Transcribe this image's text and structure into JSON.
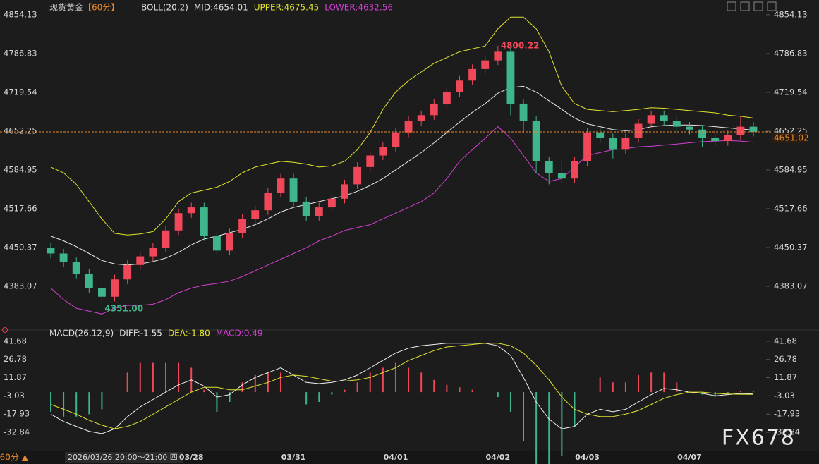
{
  "chart_data": {
    "type": "candlestick",
    "title": "现货黄金",
    "period": "【60分】",
    "legend": [
      {
        "text": "BOLL(20,2)",
        "color": "#e0e0e0"
      },
      {
        "text": "MID:4654.01",
        "color": "#e0e0e0"
      },
      {
        "text": "UPPER:4675.45",
        "color": "#e2e22e"
      },
      {
        "text": "LOWER:4632.56",
        "color": "#d43fd4"
      }
    ],
    "categories": [
      null,
      null,
      null,
      null,
      null,
      null,
      null,
      null,
      null,
      null,
      null,
      "03/28",
      null,
      null,
      null,
      null,
      null,
      null,
      null,
      "03/31",
      null,
      null,
      null,
      null,
      null,
      null,
      null,
      "04/01",
      null,
      null,
      null,
      null,
      null,
      null,
      null,
      "04/02",
      null,
      null,
      null,
      null,
      null,
      null,
      "04/03",
      null,
      null,
      null,
      null,
      null,
      null,
      null,
      "04/07",
      null,
      null,
      null,
      null,
      null
    ],
    "open": [
      4450,
      4440,
      4425,
      4405,
      4380,
      4365,
      4395,
      4420,
      4435,
      4450,
      4480,
      4510,
      4520,
      4470,
      4445,
      4475,
      4500,
      4515,
      4545,
      4570,
      4530,
      4505,
      4520,
      4535,
      4560,
      4590,
      4610,
      4625,
      4650,
      4670,
      4680,
      4700,
      4720,
      4740,
      4760,
      4775,
      4790,
      4700,
      4670,
      4600,
      4580,
      4570,
      4600,
      4650,
      4640,
      4620,
      4640,
      4665,
      4680,
      4670,
      4660,
      4655,
      4640,
      4635,
      4645,
      4660
    ],
    "high": [
      4458,
      4448,
      4433,
      4413,
      4388,
      4403,
      4428,
      4443,
      4458,
      4488,
      4518,
      4528,
      4528,
      4478,
      4483,
      4508,
      4523,
      4553,
      4578,
      4578,
      4538,
      4528,
      4543,
      4568,
      4598,
      4618,
      4633,
      4658,
      4678,
      4688,
      4708,
      4728,
      4748,
      4768,
      4783,
      4800.22,
      4798,
      4708,
      4678,
      4608,
      4600,
      4608,
      4658,
      4658,
      4648,
      4648,
      4673,
      4688,
      4688,
      4678,
      4668,
      4663,
      4648,
      4653,
      4678,
      4668
    ],
    "low": [
      4432,
      4417,
      4397,
      4372,
      4351,
      4357,
      4387,
      4412,
      4427,
      4442,
      4472,
      4502,
      4462,
      4437,
      4437,
      4467,
      4492,
      4507,
      4537,
      4522,
      4497,
      4497,
      4512,
      4527,
      4552,
      4582,
      4602,
      4617,
      4642,
      4662,
      4672,
      4692,
      4712,
      4732,
      4752,
      4767,
      4680,
      4650,
      4580,
      4560,
      4562,
      4562,
      4592,
      4632,
      4605,
      4612,
      4632,
      4657,
      4662,
      4652,
      4647,
      4625,
      4627,
      4627,
      4637,
      4643
    ],
    "close": [
      4440,
      4425,
      4405,
      4380,
      4365,
      4395,
      4420,
      4435,
      4450,
      4480,
      4510,
      4520,
      4470,
      4445,
      4475,
      4500,
      4515,
      4545,
      4570,
      4530,
      4505,
      4520,
      4535,
      4560,
      4590,
      4610,
      4625,
      4650,
      4670,
      4680,
      4700,
      4720,
      4740,
      4760,
      4775,
      4790,
      4700,
      4670,
      4600,
      4580,
      4570,
      4600,
      4650,
      4640,
      4620,
      4640,
      4665,
      4680,
      4670,
      4660,
      4655,
      4640,
      4635,
      4645,
      4660,
      4651.02
    ],
    "up_color": "#f0485a",
    "down_color": "#3fb58c",
    "bands": [
      {
        "name": "MID",
        "color": "#e8e8e8",
        "values": [
          4470,
          4462,
          4452,
          4440,
          4428,
          4422,
          4420,
          4422,
          4426,
          4432,
          4442,
          4455,
          4465,
          4470,
          4476,
          4482,
          4490,
          4500,
          4512,
          4520,
          4525,
          4530,
          4535,
          4540,
          4548,
          4558,
          4570,
          4585,
          4600,
          4615,
          4632,
          4650,
          4668,
          4685,
          4700,
          4718,
          4728,
          4730,
          4720,
          4705,
          4690,
          4675,
          4665,
          4660,
          4655,
          4653,
          4655,
          4660,
          4662,
          4663,
          4663,
          4662,
          4660,
          4658,
          4656,
          4654
        ]
      },
      {
        "name": "UPPER",
        "color": "#e2e22e",
        "values": [
          4590,
          4580,
          4560,
          4530,
          4500,
          4475,
          4472,
          4474,
          4478,
          4500,
          4530,
          4545,
          4550,
          4555,
          4565,
          4580,
          4590,
          4595,
          4600,
          4598,
          4595,
          4590,
          4592,
          4600,
          4620,
          4650,
          4690,
          4720,
          4740,
          4755,
          4770,
          4780,
          4790,
          4795,
          4800,
          4830,
          4850,
          4850,
          4830,
          4790,
          4730,
          4700,
          4690,
          4688,
          4686,
          4688,
          4690,
          4693,
          4692,
          4690,
          4688,
          4686,
          4684,
          4680,
          4678,
          4675
        ]
      },
      {
        "name": "LOWER",
        "color": "#d43fd4",
        "values": [
          4380,
          4360,
          4345,
          4340,
          4335,
          4345,
          4350,
          4350,
          4352,
          4360,
          4372,
          4380,
          4385,
          4388,
          4392,
          4400,
          4410,
          4420,
          4430,
          4440,
          4450,
          4462,
          4470,
          4480,
          4485,
          4490,
          4500,
          4510,
          4520,
          4530,
          4545,
          4570,
          4600,
          4620,
          4640,
          4660,
          4640,
          4610,
          4580,
          4565,
          4570,
          4590,
          4610,
          4615,
          4620,
          4622,
          4625,
          4626,
          4628,
          4630,
          4632,
          4634,
          4635,
          4636,
          4635,
          4633
        ]
      }
    ],
    "max_label": "4800.22",
    "min_label": "4351.00",
    "last_price": {
      "value": 4651.02,
      "label": "4651.02",
      "color": "#e8892c"
    },
    "ylim": [
      4317,
      4870
    ],
    "yticks": [
      4383.07,
      4450.37,
      4517.66,
      4584.95,
      4652.25,
      4719.54,
      4786.83,
      4854.13
    ],
    "macd": {
      "legend": [
        {
          "text": "MACD(26,12,9)",
          "color": "#e0e0e0"
        },
        {
          "text": "DIFF:-1.55",
          "color": "#e0e0e0"
        },
        {
          "text": "DEA:-1.80",
          "color": "#e2e22e"
        },
        {
          "text": "MACD:0.49",
          "color": "#d43fd4"
        }
      ],
      "diff": [
        -18,
        -24,
        -28,
        -32,
        -34,
        -30,
        -20,
        -12,
        -6,
        0,
        6,
        10,
        5,
        -4,
        -2,
        6,
        12,
        16,
        20,
        14,
        8,
        7,
        8,
        10,
        14,
        20,
        26,
        32,
        36,
        38,
        39,
        40,
        40,
        40,
        40,
        38,
        30,
        12,
        -8,
        -22,
        -30,
        -28,
        -18,
        -14,
        -16,
        -14,
        -8,
        -2,
        3,
        2,
        0,
        -1,
        -3,
        -2,
        -1,
        -1.55
      ],
      "dea": [
        -10,
        -14,
        -18,
        -23,
        -27,
        -30,
        -28,
        -24,
        -18,
        -12,
        -6,
        0,
        4,
        4,
        2,
        2,
        5,
        8,
        12,
        14,
        13,
        11,
        9,
        9,
        10,
        12,
        16,
        20,
        26,
        30,
        34,
        37,
        38,
        39,
        40,
        40,
        38,
        32,
        22,
        10,
        -4,
        -14,
        -18,
        -20,
        -20,
        -18,
        -15,
        -10,
        -5,
        -2,
        0,
        0,
        -1,
        -1.5,
        -1.7,
        -1.8
      ],
      "hist": [
        -16,
        -20,
        -20,
        -18,
        -14,
        0,
        16,
        24,
        24,
        24,
        24,
        20,
        2,
        -16,
        -8,
        8,
        14,
        16,
        16,
        0,
        -10,
        -8,
        -2,
        2,
        8,
        16,
        20,
        24,
        20,
        16,
        10,
        6,
        4,
        2,
        0,
        -4,
        -16,
        -40,
        -60,
        -64,
        -52,
        -28,
        0,
        12,
        8,
        8,
        14,
        16,
        16,
        8,
        0,
        -2,
        -4,
        -1,
        1,
        0.49
      ],
      "diff_color": "#f0f0f0",
      "dea_color": "#e2e22e",
      "ylim": [
        -48.4,
        49.7
      ],
      "yticks": [
        -32.84,
        -17.93,
        -3.03,
        11.87,
        26.78,
        41.68
      ]
    },
    "period_button": "60分 ▲",
    "cursor_time": "2026/03/26 20:00～21:00 四",
    "watermark": "FX678"
  }
}
